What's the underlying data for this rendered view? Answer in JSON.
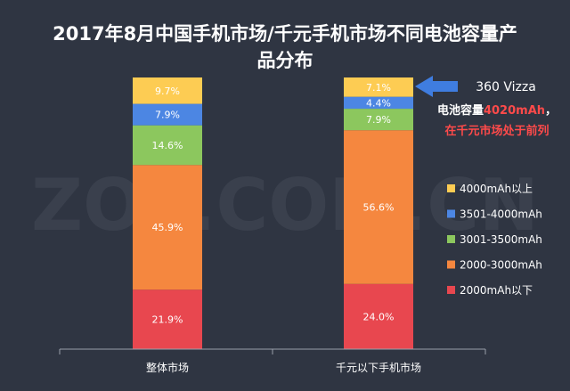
{
  "title_line1": "2017年8月中国手机市场/千元手机市场不同电池容量产",
  "title_line2": "品分布",
  "watermark": "ZOL.COM.CN",
  "callout": {
    "model": "360 Vizza",
    "line1_prefix": "电池容量",
    "line1_value": "4020mAh",
    "line1_suffix": "，",
    "line2": "在千元市场处于前列"
  },
  "colors": {
    "background": "#2f3542",
    "arrow": "#3f7de0",
    "highlight_red": "#ff4a4a"
  },
  "chart_data": {
    "type": "bar",
    "stacked": true,
    "categories": [
      "整体市场",
      "千元以下手机市场"
    ],
    "series": [
      {
        "name": "2000mAh以下",
        "values": [
          21.9,
          24.0
        ],
        "labels": [
          "21.9%",
          "24.0%"
        ],
        "color": "#e8474f"
      },
      {
        "name": "2000-3000mAh",
        "values": [
          45.9,
          56.6
        ],
        "labels": [
          "45.9%",
          "56.6%"
        ],
        "color": "#f5873f"
      },
      {
        "name": "3001-3500mAh",
        "values": [
          14.6,
          7.9
        ],
        "labels": [
          "14.6%",
          "7.9%"
        ],
        "color": "#8cc75e"
      },
      {
        "name": "3501-4000mAh",
        "values": [
          7.9,
          4.4
        ],
        "labels": [
          "7.9%",
          "4.4%"
        ],
        "color": "#4c86e3"
      },
      {
        "name": "4000mAh以上",
        "values": [
          9.7,
          7.1
        ],
        "labels": [
          "9.7%",
          "7.1%"
        ],
        "color": "#fdcc53"
      }
    ],
    "ylim": [
      0,
      100
    ],
    "legend_position": "right",
    "grid": false
  }
}
